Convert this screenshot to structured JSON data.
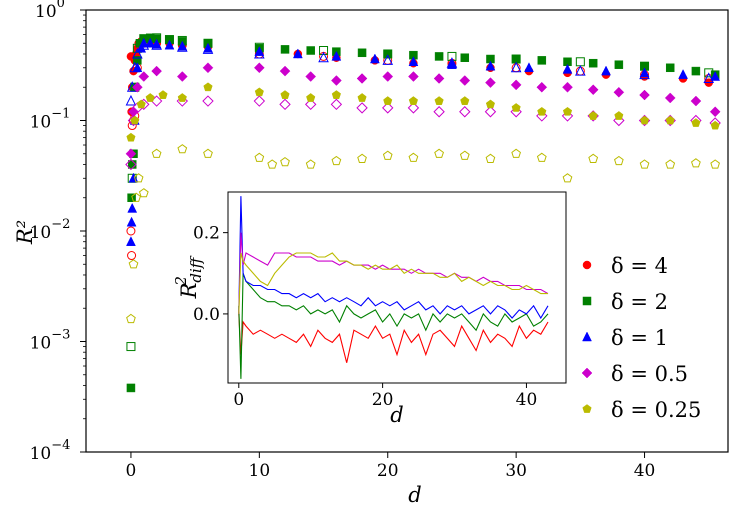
{
  "chart_data": {
    "type": "scatter",
    "xlabel": "d",
    "ylabel": "R²",
    "yscale": "log",
    "xlim": [
      -3.5,
      46.5
    ],
    "ylim": [
      0.0001,
      1
    ],
    "xticks": [
      0,
      10,
      20,
      30,
      40
    ],
    "xtick_labels": [
      "0",
      "10",
      "20",
      "30",
      "40"
    ],
    "yticks": [
      0.0001,
      0.001,
      0.01,
      0.1,
      1
    ],
    "ytick_labels": [
      {
        "base": "10",
        "exp": "−4"
      },
      {
        "base": "10",
        "exp": "−3"
      },
      {
        "base": "10",
        "exp": "−2"
      },
      {
        "base": "10",
        "exp": "−1"
      },
      {
        "base": "10",
        "exp": "0"
      }
    ],
    "legend": {
      "placement": "right",
      "entries": [
        {
          "label": "δ = 4",
          "series": 0
        },
        {
          "label": "δ = 2",
          "series": 1
        },
        {
          "label": "δ = 1",
          "series": 2
        },
        {
          "label": "δ = 0.5",
          "series": 3
        },
        {
          "label": "δ = 0.25",
          "series": 4
        }
      ]
    },
    "series": [
      {
        "name": "δ = 4",
        "color": "#ff0000",
        "marker": "circle",
        "filled": {
          "d": [
            0,
            0.05,
            0.1,
            0.2,
            0.3,
            0.4,
            0.5,
            0.6,
            0.8,
            1.0,
            1.5,
            2.0,
            3.0,
            4.0,
            6.0,
            10,
            13,
            16,
            19,
            22,
            25,
            28,
            31,
            34,
            37,
            40,
            43,
            45
          ],
          "y": [
            0.38,
            0.12,
            0.2,
            0.28,
            0.35,
            0.4,
            0.45,
            0.5,
            0.52,
            0.53,
            0.52,
            0.51,
            0.5,
            0.49,
            0.48,
            0.42,
            0.4,
            0.37,
            0.35,
            0.33,
            0.32,
            0.3,
            0.28,
            0.27,
            0.26,
            0.25,
            0.24,
            0.22
          ]
        },
        "open": {
          "d": [
            0,
            0.05,
            0.1,
            0.2,
            0.3,
            0.4,
            0.5,
            1.0,
            2.0,
            4.0,
            6.0,
            10,
            15,
            20,
            25,
            30,
            35,
            40,
            45
          ],
          "y": [
            0.01,
            0.006,
            0.09,
            0.1,
            0.11,
            0.2,
            0.3,
            0.5,
            0.5,
            0.48,
            0.47,
            0.4,
            0.38,
            0.35,
            0.33,
            0.3,
            0.28,
            0.26,
            0.24
          ]
        }
      },
      {
        "name": "δ = 2",
        "color": "#008000",
        "marker": "square",
        "filled": {
          "d": [
            0,
            0.05,
            0.1,
            0.2,
            0.3,
            0.5,
            0.7,
            1.0,
            1.5,
            2.0,
            3.0,
            4.0,
            6.0,
            10,
            12,
            14,
            16,
            18,
            20,
            22,
            24,
            26,
            28,
            30,
            32,
            34,
            36,
            38,
            40,
            42,
            44,
            45.5
          ],
          "y": [
            0.00038,
            0.02,
            0.04,
            0.05,
            0.2,
            0.35,
            0.5,
            0.55,
            0.56,
            0.55,
            0.54,
            0.52,
            0.5,
            0.45,
            0.44,
            0.43,
            0.42,
            0.41,
            0.4,
            0.39,
            0.38,
            0.37,
            0.36,
            0.36,
            0.35,
            0.34,
            0.33,
            0.32,
            0.31,
            0.3,
            0.28,
            0.26
          ]
        },
        "open": {
          "d": [
            0,
            0.1,
            0.3,
            0.5,
            1.0,
            2.0,
            3.0,
            4.0,
            6.0,
            10,
            15,
            20,
            25,
            30,
            35,
            40,
            45
          ],
          "y": [
            0.0009,
            0.03,
            0.2,
            0.45,
            0.55,
            0.56,
            0.54,
            0.53,
            0.5,
            0.46,
            0.43,
            0.4,
            0.38,
            0.36,
            0.34,
            0.31,
            0.27
          ]
        }
      },
      {
        "name": "δ = 1",
        "color": "#0000ff",
        "marker": "triangle",
        "filled": {
          "d": [
            0,
            0.05,
            0.1,
            0.2,
            0.3,
            0.5,
            0.8,
            1.0,
            1.5,
            2.0,
            3.0,
            4.0,
            6.0,
            10,
            13,
            16,
            19,
            22,
            25,
            28,
            31,
            34,
            37,
            40,
            43,
            45.5
          ],
          "y": [
            0.008,
            0.012,
            0.016,
            0.03,
            0.1,
            0.3,
            0.45,
            0.5,
            0.5,
            0.49,
            0.48,
            0.47,
            0.45,
            0.42,
            0.4,
            0.38,
            0.36,
            0.34,
            0.32,
            0.31,
            0.3,
            0.29,
            0.28,
            0.27,
            0.26,
            0.25
          ]
        },
        "open": {
          "d": [
            0,
            0.1,
            0.3,
            0.5,
            1.0,
            2.0,
            4.0,
            6.0,
            10,
            15,
            20,
            25,
            30,
            35,
            40,
            45
          ],
          "y": [
            0.15,
            0.2,
            0.3,
            0.4,
            0.48,
            0.48,
            0.46,
            0.44,
            0.4,
            0.37,
            0.35,
            0.33,
            0.3,
            0.28,
            0.26,
            0.24
          ]
        }
      },
      {
        "name": "δ = 0.5",
        "color": "#cc00cc",
        "marker": "diamond",
        "filled": {
          "d": [
            0,
            0.2,
            0.5,
            1.0,
            2.0,
            4.0,
            6.0,
            10,
            12,
            14,
            16,
            18,
            20,
            22,
            24,
            26,
            28,
            30,
            32,
            34,
            36,
            38,
            40,
            42,
            44,
            45.5
          ],
          "y": [
            0.05,
            0.12,
            0.2,
            0.25,
            0.28,
            0.25,
            0.3,
            0.3,
            0.28,
            0.25,
            0.23,
            0.24,
            0.25,
            0.25,
            0.24,
            0.23,
            0.22,
            0.21,
            0.2,
            0.2,
            0.19,
            0.18,
            0.17,
            0.16,
            0.15,
            0.12
          ]
        },
        "open": {
          "d": [
            0,
            0.2,
            0.5,
            1.0,
            2.0,
            4.0,
            6.0,
            10,
            12,
            14,
            16,
            18,
            20,
            22,
            24,
            26,
            28,
            30,
            32,
            34,
            36,
            38,
            40,
            42,
            44,
            45.5
          ],
          "y": [
            0.04,
            0.1,
            0.13,
            0.14,
            0.15,
            0.15,
            0.15,
            0.15,
            0.14,
            0.14,
            0.14,
            0.13,
            0.13,
            0.13,
            0.12,
            0.12,
            0.12,
            0.12,
            0.11,
            0.11,
            0.11,
            0.1,
            0.1,
            0.1,
            0.1,
            0.095
          ]
        }
      },
      {
        "name": "δ = 0.25",
        "color": "#bbbb00",
        "marker": "pentagon",
        "filled": {
          "d": [
            0,
            0.3,
            0.8,
            1.5,
            2.5,
            4.0,
            6.0,
            10,
            12,
            14,
            16,
            18,
            20,
            22,
            24,
            26,
            28,
            30,
            32,
            34,
            36,
            38,
            40,
            42,
            44,
            45.5
          ],
          "y": [
            0.07,
            0.1,
            0.14,
            0.16,
            0.17,
            0.16,
            0.2,
            0.18,
            0.17,
            0.16,
            0.17,
            0.16,
            0.15,
            0.15,
            0.15,
            0.15,
            0.14,
            0.13,
            0.12,
            0.12,
            0.11,
            0.11,
            0.1,
            0.1,
            0.095,
            0.09
          ]
        },
        "open": {
          "d": [
            0,
            0.2,
            0.4,
            0.6,
            1.0,
            2.0,
            4.0,
            6.0,
            10,
            11,
            12,
            14,
            16,
            18,
            20,
            22,
            24,
            26,
            28,
            30,
            32,
            34,
            36,
            38,
            40,
            42,
            44,
            45.5
          ],
          "y": [
            0.0016,
            0.005,
            0.02,
            0.03,
            0.022,
            0.05,
            0.055,
            0.05,
            0.046,
            0.04,
            0.042,
            0.04,
            0.043,
            0.045,
            0.048,
            0.046,
            0.05,
            0.048,
            0.045,
            0.05,
            0.046,
            0.03,
            0.045,
            0.043,
            0.04,
            0.04,
            0.041,
            0.04
          ]
        }
      }
    ],
    "inset": {
      "type": "line",
      "xlabel": "d",
      "ylabel": {
        "base": "R",
        "sup": "2",
        "sub": "diff"
      },
      "xlim": [
        -1.5,
        45.5
      ],
      "ylim": [
        -0.17,
        0.3
      ],
      "xticks": [
        0,
        20,
        40
      ],
      "xtick_labels": [
        "0",
        "20",
        "40"
      ],
      "yticks": [
        0.0,
        0.2
      ],
      "ytick_labels": [
        "0.0",
        "0.2"
      ],
      "series": [
        {
          "name": "δ = 4",
          "color": "#ff0000",
          "x": [
            0,
            0.3,
            0.6,
            1,
            2,
            3,
            4,
            5,
            6,
            7,
            8,
            9,
            10,
            11,
            12,
            13,
            14,
            15,
            16,
            17,
            18,
            19,
            20,
            21,
            22,
            23,
            24,
            25,
            26,
            27,
            28,
            29,
            30,
            31,
            32,
            33,
            34,
            35,
            36,
            37,
            38,
            39,
            40,
            41,
            42,
            43
          ],
          "y": [
            0.0,
            -0.1,
            -0.02,
            -0.03,
            -0.05,
            -0.04,
            -0.05,
            -0.06,
            -0.05,
            -0.06,
            -0.07,
            -0.05,
            -0.08,
            -0.04,
            -0.06,
            -0.07,
            -0.05,
            -0.12,
            -0.04,
            -0.05,
            -0.06,
            -0.03,
            -0.06,
            -0.05,
            -0.1,
            -0.04,
            -0.07,
            -0.05,
            -0.1,
            -0.05,
            -0.04,
            -0.06,
            -0.08,
            -0.03,
            -0.06,
            -0.09,
            -0.04,
            -0.07,
            -0.05,
            -0.06,
            -0.08,
            -0.03,
            -0.06,
            -0.04,
            -0.05,
            -0.02
          ]
        },
        {
          "name": "δ = 2",
          "color": "#008000",
          "x": [
            0,
            0.3,
            0.6,
            1,
            2,
            3,
            4,
            5,
            6,
            7,
            8,
            9,
            10,
            11,
            12,
            13,
            14,
            15,
            16,
            17,
            18,
            19,
            20,
            21,
            22,
            23,
            24,
            25,
            26,
            27,
            28,
            29,
            30,
            31,
            32,
            33,
            34,
            35,
            36,
            37,
            38,
            39,
            40,
            41,
            42,
            43
          ],
          "y": [
            0.02,
            -0.16,
            0.1,
            0.08,
            0.06,
            0.04,
            0.03,
            0.03,
            0.02,
            0.02,
            0.01,
            0.02,
            0.0,
            0.01,
            0.0,
            0.01,
            -0.02,
            0.02,
            0.0,
            -0.01,
            0.0,
            0.01,
            -0.02,
            0.0,
            -0.03,
            0.0,
            -0.01,
            0.0,
            -0.04,
            0.0,
            -0.02,
            0.0,
            -0.01,
            0.0,
            -0.02,
            -0.04,
            0.0,
            -0.02,
            -0.03,
            0.0,
            -0.02,
            -0.01,
            0.0,
            -0.03,
            -0.02,
            0.0
          ]
        },
        {
          "name": "δ = 1",
          "color": "#0000ff",
          "x": [
            0,
            0.3,
            0.6,
            1,
            2,
            3,
            4,
            5,
            6,
            7,
            8,
            9,
            10,
            11,
            12,
            13,
            14,
            15,
            16,
            17,
            18,
            19,
            20,
            21,
            22,
            23,
            24,
            25,
            26,
            27,
            28,
            29,
            30,
            31,
            32,
            33,
            34,
            35,
            36,
            37,
            38,
            39,
            40,
            41,
            42,
            43
          ],
          "y": [
            0.0,
            0.29,
            0.1,
            0.08,
            0.07,
            0.07,
            0.06,
            0.06,
            0.05,
            0.05,
            0.04,
            0.05,
            0.04,
            0.05,
            0.03,
            0.04,
            0.03,
            0.04,
            0.03,
            0.02,
            0.04,
            0.02,
            0.03,
            0.02,
            0.03,
            0.01,
            0.02,
            0.03,
            0.01,
            0.02,
            0.0,
            0.02,
            0.01,
            0.02,
            0.0,
            0.01,
            0.02,
            0.0,
            0.02,
            0.01,
            -0.01,
            0.01,
            0.0,
            0.02,
            -0.01,
            0.02
          ]
        },
        {
          "name": "δ = 0.5",
          "color": "#cc00cc",
          "x": [
            0,
            0.3,
            0.6,
            1,
            2,
            3,
            4,
            5,
            6,
            7,
            8,
            9,
            10,
            11,
            12,
            13,
            14,
            15,
            16,
            17,
            18,
            19,
            20,
            21,
            22,
            23,
            24,
            25,
            26,
            27,
            28,
            29,
            30,
            31,
            32,
            33,
            34,
            35,
            36,
            37,
            38,
            39,
            40,
            41,
            42,
            43
          ],
          "y": [
            0.0,
            0.2,
            0.12,
            0.15,
            0.14,
            0.13,
            0.12,
            0.15,
            0.15,
            0.15,
            0.14,
            0.14,
            0.14,
            0.13,
            0.13,
            0.13,
            0.12,
            0.13,
            0.12,
            0.12,
            0.12,
            0.11,
            0.12,
            0.11,
            0.11,
            0.11,
            0.1,
            0.11,
            0.1,
            0.1,
            0.1,
            0.09,
            0.1,
            0.09,
            0.09,
            0.08,
            0.09,
            0.08,
            0.08,
            0.07,
            0.07,
            0.07,
            0.06,
            0.06,
            0.06,
            0.05
          ]
        },
        {
          "name": "δ = 0.25",
          "color": "#bbbb00",
          "x": [
            0,
            0.3,
            0.6,
            1,
            2,
            3,
            4,
            5,
            6,
            7,
            8,
            9,
            10,
            11,
            12,
            13,
            14,
            15,
            16,
            17,
            18,
            19,
            20,
            21,
            22,
            23,
            24,
            25,
            26,
            27,
            28,
            29,
            30,
            31,
            32,
            33,
            34,
            35,
            36,
            37,
            38,
            39,
            40,
            41,
            42,
            43
          ],
          "y": [
            0.0,
            0.15,
            0.13,
            0.12,
            0.1,
            0.08,
            0.07,
            0.1,
            0.12,
            0.14,
            0.15,
            0.15,
            0.15,
            0.14,
            0.14,
            0.15,
            0.13,
            0.13,
            0.12,
            0.12,
            0.11,
            0.12,
            0.11,
            0.11,
            0.12,
            0.1,
            0.11,
            0.1,
            0.1,
            0.1,
            0.09,
            0.09,
            0.1,
            0.08,
            0.09,
            0.08,
            0.07,
            0.08,
            0.07,
            0.07,
            0.06,
            0.06,
            0.07,
            0.06,
            0.05,
            0.05
          ]
        }
      ]
    }
  }
}
